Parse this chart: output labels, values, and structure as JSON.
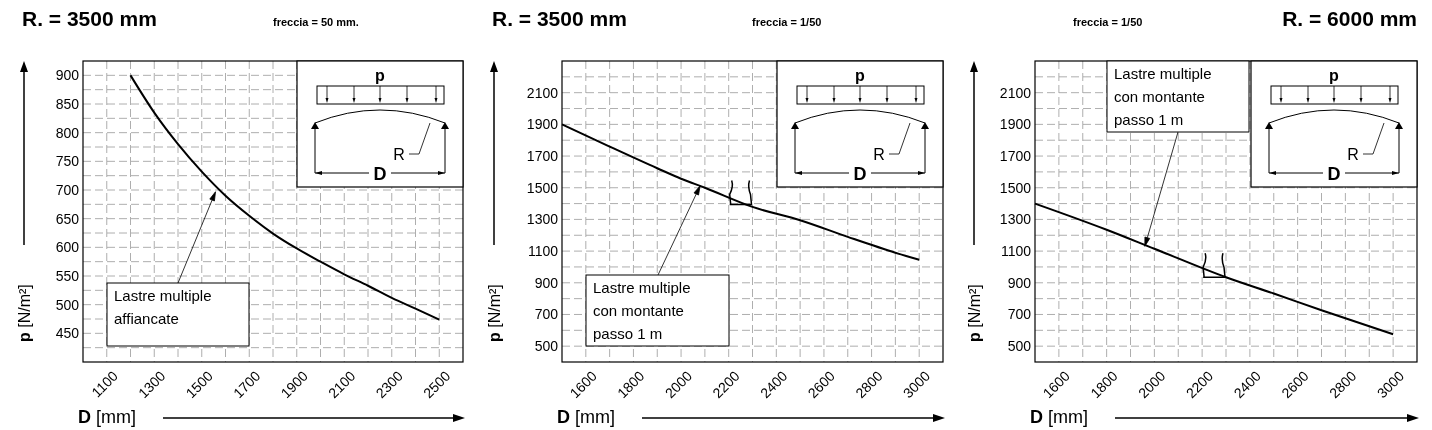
{
  "chart_data": [
    {
      "type": "line",
      "title": "R. = 3500 mm",
      "subtitle": "freccia = 50 mm.",
      "xlabel": "D [mm]",
      "ylabel": "p [N/m²]",
      "grid": true,
      "xlim": [
        1000,
        2600
      ],
      "xticks": [
        1100,
        {
          "value": 1200,
          "label": null
        },
        1300,
        {
          "value": 1400,
          "label": null
        },
        1500,
        {
          "value": 1600,
          "label": null
        },
        1700,
        {
          "value": 1800,
          "label": null
        },
        1900,
        {
          "value": 2000,
          "label": null
        },
        2100,
        {
          "value": 2200,
          "label": null
        },
        2300,
        {
          "value": 2400,
          "label": null
        },
        2500
      ],
      "ylim": [
        400,
        925
      ],
      "yticks": [
        {
          "value": 425,
          "label": null
        },
        450,
        {
          "value": 475,
          "label": null
        },
        500,
        {
          "value": 525,
          "label": null
        },
        550,
        {
          "value": 575,
          "label": null
        },
        600,
        {
          "value": 625,
          "label": null
        },
        650,
        {
          "value": 675,
          "label": null
        },
        700,
        {
          "value": 725,
          "label": null
        },
        750,
        {
          "value": 775,
          "label": null
        },
        800,
        {
          "value": 825,
          "label": null
        },
        850,
        {
          "value": 875,
          "label": null
        },
        900
      ],
      "series": [
        {
          "color": "#000000",
          "x": [
            1200,
            1300,
            1400,
            1500,
            1600,
            1700,
            1800,
            1900,
            2000,
            2100,
            2200,
            2300,
            2400,
            2500
          ],
          "values": [
            900,
            835,
            780,
            732,
            690,
            655,
            624,
            598,
            575,
            553,
            533,
            512,
            493,
            474
          ]
        }
      ],
      "annotations": [
        {
          "text": "Lastre multiple\naffiancate",
          "x": 1558,
          "y": 697
        },
        "p",
        "R",
        "D"
      ]
    },
    {
      "type": "line",
      "title": "R. = 3500 mm",
      "subtitle": "freccia = 1/50",
      "xlabel": "D [mm]",
      "ylabel": "p [N/m²]",
      "grid": true,
      "xlim": [
        1500,
        3100
      ],
      "xticks": [
        1600,
        {
          "value": 1700,
          "label": null
        },
        1800,
        {
          "value": 1900,
          "label": null
        },
        2000,
        {
          "value": 2100,
          "label": null
        },
        2200,
        {
          "value": 2300,
          "label": null
        },
        2400,
        {
          "value": 2500,
          "label": null
        },
        2600,
        {
          "value": 2700,
          "label": null
        },
        2800,
        {
          "value": 2900,
          "label": null
        },
        3000
      ],
      "ylim": [
        400,
        2300
      ],
      "yticks": [
        500,
        {
          "value": 600,
          "label": null
        },
        700,
        {
          "value": 800,
          "label": null
        },
        900,
        {
          "value": 1000,
          "label": null
        },
        1100,
        {
          "value": 1200,
          "label": null
        },
        1300,
        {
          "value": 1400,
          "label": null
        },
        1500,
        {
          "value": 1600,
          "label": null
        },
        1700,
        {
          "value": 1800,
          "label": null
        },
        1900,
        {
          "value": 2000,
          "label": null
        },
        2100,
        {
          "value": 2200,
          "label": null
        }
      ],
      "series": [
        {
          "color": "#000000",
          "x": [
            1500,
            1700,
            1900,
            2000,
            2100,
            2300,
            2500,
            2700,
            2900,
            3000
          ],
          "values": [
            1900,
            1760,
            1623,
            1557,
            1500,
            1379,
            1295,
            1190,
            1090,
            1045
          ]
        }
      ],
      "annotations": [
        {
          "text": "Lastre multiple\ncon montante\npasso 1 m",
          "x": 2080,
          "y": 1512
        },
        "p",
        "R",
        "D"
      ]
    },
    {
      "type": "line",
      "title": "R. = 6000 mm",
      "subtitle": "freccia = 1/50",
      "xlabel": "D [mm]",
      "ylabel": "p [N/m²]",
      "grid": true,
      "xlim": [
        1500,
        3100
      ],
      "xticks": [
        1600,
        {
          "value": 1700,
          "label": null
        },
        1800,
        {
          "value": 1900,
          "label": null
        },
        2000,
        {
          "value": 2100,
          "label": null
        },
        2200,
        {
          "value": 2300,
          "label": null
        },
        2400,
        {
          "value": 2500,
          "label": null
        },
        2600,
        {
          "value": 2700,
          "label": null
        },
        2800,
        {
          "value": 2900,
          "label": null
        },
        3000
      ],
      "ylim": [
        400,
        2300
      ],
      "yticks": [
        500,
        {
          "value": 600,
          "label": null
        },
        700,
        {
          "value": 800,
          "label": null
        },
        900,
        {
          "value": 1000,
          "label": null
        },
        1100,
        {
          "value": 1200,
          "label": null
        },
        1300,
        {
          "value": 1400,
          "label": null
        },
        1500,
        {
          "value": 1600,
          "label": null
        },
        1700,
        {
          "value": 1800,
          "label": null
        },
        1900,
        {
          "value": 2000,
          "label": null
        },
        2100,
        {
          "value": 2200,
          "label": null
        }
      ],
      "series": [
        {
          "color": "#000000",
          "x": [
            1500,
            1800,
            2000,
            2300,
            2500,
            2700,
            3000
          ],
          "values": [
            1400,
            1235,
            1115,
            935,
            832,
            727,
            575
          ]
        }
      ],
      "annotations": [
        {
          "text": "Lastre multiple\ncon montante\npasso 1 m",
          "x": 1960,
          "y": 1130
        },
        "p",
        "R",
        "D"
      ]
    }
  ]
}
